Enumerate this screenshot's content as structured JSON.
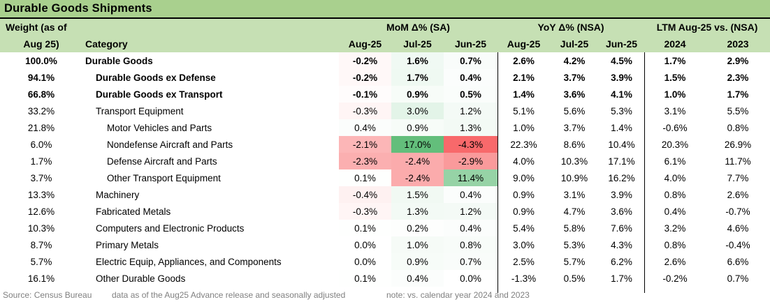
{
  "title": "Durable Goods Shipments",
  "colors": {
    "title_bar": "#A9D08E",
    "header_bg": "#C6E0B4",
    "heat_negative": "#F8696B",
    "heat_neutral": "#FFFFFF",
    "heat_positive": "#63BE7B",
    "separator": "#000000",
    "footer_text": "#808080"
  },
  "header": {
    "weight_line1": "Weight (as of",
    "weight_line2": "Aug 25)",
    "category": "Category",
    "groups": [
      {
        "label": "MoM Δ% (SA)",
        "cols": [
          "Aug-25",
          "Jul-25",
          "Jun-25"
        ]
      },
      {
        "label": "YoY Δ% (NSA)",
        "cols": [
          "Aug-25",
          "Jul-25",
          "Jun-25"
        ]
      },
      {
        "label": "LTM Aug-25 vs. (NSA)",
        "cols": [
          "2024",
          "2023"
        ]
      }
    ]
  },
  "heatmap": {
    "applies_to": "mom",
    "min": -4.3,
    "max": 17.0,
    "negative_color": "#F8696B",
    "neutral_color": "#FFFFFF",
    "positive_color": "#63BE7B"
  },
  "chart_data": {
    "type": "table",
    "title": "Durable Goods Shipments",
    "columns": [
      "Weight (as of Aug 25)",
      "Category",
      "MoM Δ% (SA) Aug-25",
      "MoM Δ% (SA) Jul-25",
      "MoM Δ% (SA) Jun-25",
      "YoY Δ% (NSA) Aug-25",
      "YoY Δ% (NSA) Jul-25",
      "YoY Δ% (NSA) Jun-25",
      "LTM Aug-25 vs. (NSA) 2024",
      "LTM Aug-25 vs. (NSA) 2023"
    ],
    "rows": [
      {
        "weight": "100.0%",
        "category": "Durable Goods",
        "indent": 0,
        "bold": true,
        "mom": [
          -0.2,
          1.6,
          0.7
        ],
        "yoy": [
          2.6,
          4.2,
          4.5
        ],
        "ltm": [
          1.7,
          2.9
        ]
      },
      {
        "weight": "94.1%",
        "category": "Durable Goods ex Defense",
        "indent": 1,
        "bold": true,
        "mom": [
          -0.2,
          1.7,
          0.4
        ],
        "yoy": [
          2.1,
          3.7,
          3.9
        ],
        "ltm": [
          1.5,
          2.3
        ]
      },
      {
        "weight": "66.8%",
        "category": "Durable Goods ex Transport",
        "indent": 1,
        "bold": true,
        "mom": [
          -0.1,
          0.9,
          0.5
        ],
        "yoy": [
          1.4,
          3.6,
          4.1
        ],
        "ltm": [
          1.0,
          1.7
        ]
      },
      {
        "weight": "33.2%",
        "category": "Transport Equipment",
        "indent": 1,
        "bold": false,
        "mom": [
          -0.3,
          3.0,
          1.2
        ],
        "yoy": [
          5.1,
          5.6,
          5.3
        ],
        "ltm": [
          3.1,
          5.5
        ]
      },
      {
        "weight": "21.8%",
        "category": "Motor Vehicles and Parts",
        "indent": 2,
        "bold": false,
        "mom": [
          0.4,
          0.9,
          1.3
        ],
        "yoy": [
          1.0,
          3.7,
          1.4
        ],
        "ltm": [
          -0.6,
          0.8
        ]
      },
      {
        "weight": "6.0%",
        "category": "Nondefense Aircraft and Parts",
        "indent": 2,
        "bold": false,
        "mom": [
          -2.1,
          17.0,
          -4.3
        ],
        "yoy": [
          22.3,
          8.6,
          10.4
        ],
        "ltm": [
          20.3,
          26.9
        ]
      },
      {
        "weight": "1.7%",
        "category": "Defense Aircraft and Parts",
        "indent": 2,
        "bold": false,
        "mom": [
          -2.3,
          -2.4,
          -2.9
        ],
        "yoy": [
          4.0,
          10.3,
          17.1
        ],
        "ltm": [
          6.1,
          11.7
        ]
      },
      {
        "weight": "3.7%",
        "category": "Other Transport Equipment",
        "indent": 2,
        "bold": false,
        "mom": [
          0.1,
          -2.4,
          11.4
        ],
        "yoy": [
          9.0,
          10.9,
          16.2
        ],
        "ltm": [
          4.0,
          7.7
        ]
      },
      {
        "weight": "13.3%",
        "category": "Machinery",
        "indent": 1,
        "bold": false,
        "mom": [
          -0.4,
          1.5,
          0.4
        ],
        "yoy": [
          0.9,
          3.1,
          3.9
        ],
        "ltm": [
          0.8,
          2.6
        ]
      },
      {
        "weight": "12.6%",
        "category": "Fabricated Metals",
        "indent": 1,
        "bold": false,
        "mom": [
          -0.3,
          1.3,
          1.2
        ],
        "yoy": [
          0.9,
          4.7,
          3.6
        ],
        "ltm": [
          0.4,
          -0.7
        ]
      },
      {
        "weight": "10.3%",
        "category": "Computers and Electronic Products",
        "indent": 1,
        "bold": false,
        "mom": [
          0.1,
          0.2,
          0.4
        ],
        "yoy": [
          5.4,
          5.8,
          7.6
        ],
        "ltm": [
          3.2,
          4.6
        ]
      },
      {
        "weight": "8.7%",
        "category": "Primary Metals",
        "indent": 1,
        "bold": false,
        "mom": [
          0.0,
          1.0,
          0.8
        ],
        "yoy": [
          3.0,
          5.3,
          4.3
        ],
        "ltm": [
          0.8,
          -0.4
        ]
      },
      {
        "weight": "5.7%",
        "category": "Electric Equip, Appliances, and Components",
        "indent": 1,
        "bold": false,
        "mom": [
          0.0,
          0.9,
          0.7
        ],
        "yoy": [
          2.5,
          5.7,
          6.2
        ],
        "ltm": [
          2.6,
          6.6
        ]
      },
      {
        "weight": "16.1%",
        "category": "Other Durable Goods",
        "indent": 1,
        "bold": false,
        "mom": [
          0.1,
          0.4,
          0.0
        ],
        "yoy": [
          -1.3,
          0.5,
          1.7
        ],
        "ltm": [
          -0.2,
          0.7
        ]
      }
    ]
  },
  "footer": {
    "source": "Source: Census Bureau",
    "data_note": "data as of the Aug25 Advance release and seasonally adjusted",
    "comparison_note": "note: vs. calendar year 2024 and 2023"
  }
}
